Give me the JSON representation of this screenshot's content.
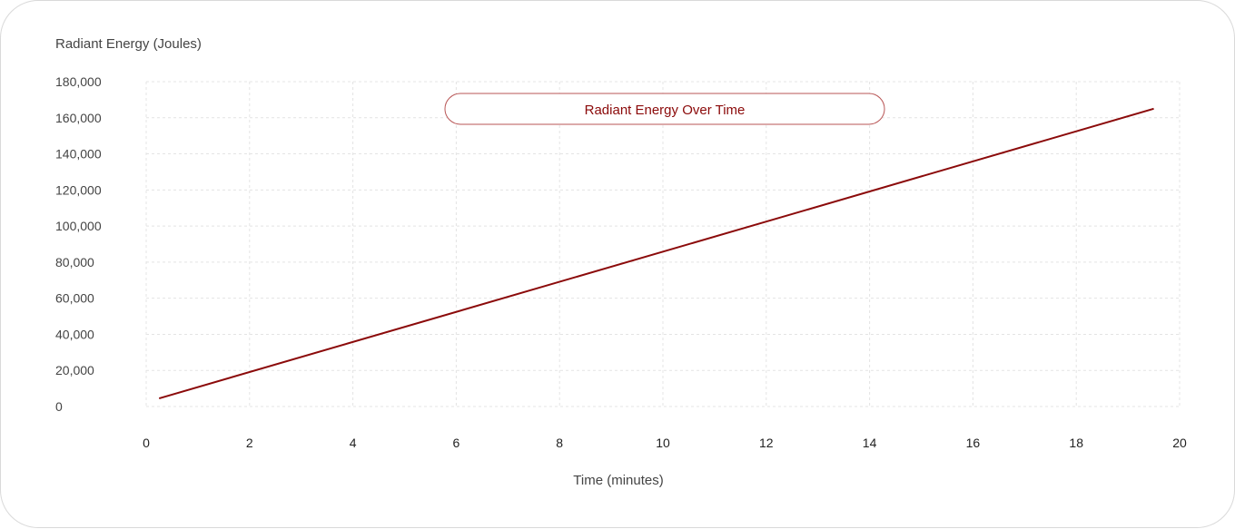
{
  "chart_data": {
    "type": "line",
    "title": "Radiant Energy Over Time",
    "xlabel": "Time (minutes)",
    "ylabel": "Radiant Energy (Joules)",
    "xlim": [
      0,
      20
    ],
    "ylim": [
      0,
      180000
    ],
    "x_ticks": [
      0,
      2,
      4,
      6,
      8,
      10,
      12,
      14,
      16,
      18,
      20
    ],
    "x_tick_labels": [
      "0",
      "2",
      "4",
      "6",
      "8",
      "10",
      "12",
      "14",
      "16",
      "18",
      "20"
    ],
    "y_ticks": [
      0,
      20000,
      40000,
      60000,
      80000,
      100000,
      120000,
      140000,
      160000,
      180000
    ],
    "y_tick_labels": [
      "0",
      "20,000",
      "40,000",
      "60,000",
      "80,000",
      "100,000",
      "120,000",
      "140,000",
      "160,000",
      "180,000"
    ],
    "grid": true,
    "series": [
      {
        "color": "#8b0a0a",
        "x": [
          0.25,
          19.5
        ],
        "y": [
          4500,
          165000
        ]
      }
    ]
  }
}
